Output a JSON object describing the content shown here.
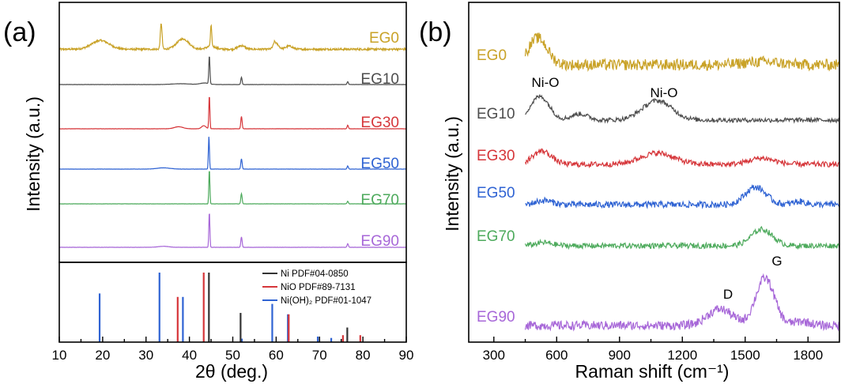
{
  "chart_data": [
    {
      "type": "line",
      "panel_label": "(a)",
      "xlabel": "2θ (deg.)",
      "ylabel": "Intensity (a.u.)",
      "xlim": [
        10,
        90
      ],
      "xticks": [
        "10",
        "20",
        "30",
        "40",
        "50",
        "60",
        "70",
        "80",
        "90"
      ],
      "colors": {
        "EG0": "#c9a227",
        "EG10": "#4d4d4d",
        "EG30": "#d6363a",
        "EG50": "#2f63d3",
        "EG70": "#4daa5c",
        "EG90": "#a767d8"
      },
      "series": [
        {
          "name": "EG0",
          "color": "#c9a227",
          "baseline": 0.9,
          "noise": 0.03,
          "broad_peaks": [
            [
              19.5,
              0.85,
              2.0
            ],
            [
              38.5,
              1.0,
              1.4
            ],
            [
              45.0,
              0.3,
              1.0
            ],
            [
              52.0,
              0.35,
              0.8
            ],
            [
              60.0,
              0.55,
              0.6
            ],
            [
              63.0,
              0.3,
              0.8
            ]
          ],
          "peaks": [
            [
              33.5,
              2.5,
              0.2
            ],
            [
              45.0,
              2.0,
              0.15
            ],
            [
              59.6,
              0.3,
              0.2
            ]
          ]
        },
        {
          "name": "EG10",
          "color": "#4d4d4d",
          "baseline": 0.0,
          "noise": 0.01,
          "broad_peaks": [
            [
              38.0,
              0.08,
              2.0
            ],
            [
              43.5,
              0.15,
              1.0
            ]
          ],
          "peaks": [
            [
              44.6,
              2.7,
              0.13
            ],
            [
              52.0,
              0.7,
              0.15
            ],
            [
              76.5,
              0.28,
              0.15
            ]
          ]
        },
        {
          "name": "EG30",
          "color": "#d6363a",
          "baseline": 0.0,
          "noise": 0.01,
          "broad_peaks": [
            [
              37.5,
              0.2,
              1.0
            ],
            [
              43.3,
              0.3,
              0.5
            ]
          ],
          "peaks": [
            [
              44.6,
              3.2,
              0.12
            ],
            [
              52.0,
              1.2,
              0.15
            ],
            [
              76.5,
              0.35,
              0.15
            ]
          ]
        },
        {
          "name": "EG50",
          "color": "#2f63d3",
          "baseline": 0.0,
          "noise": 0.01,
          "broad_peaks": [
            [
              34.0,
              0.12,
              1.5
            ]
          ],
          "peaks": [
            [
              44.5,
              3.2,
              0.12
            ],
            [
              52.0,
              1.0,
              0.15
            ],
            [
              76.5,
              0.3,
              0.15
            ]
          ]
        },
        {
          "name": "EG70",
          "color": "#4daa5c",
          "baseline": 0.0,
          "noise": 0.01,
          "broad_peaks": [],
          "peaks": [
            [
              44.6,
              3.3,
              0.12
            ],
            [
              52.0,
              1.0,
              0.15
            ],
            [
              76.5,
              0.25,
              0.15
            ]
          ]
        },
        {
          "name": "EG90",
          "color": "#a767d8",
          "baseline": 0.0,
          "noise": 0.01,
          "broad_peaks": [
            [
              34.0,
              0.1,
              1.2
            ]
          ],
          "peaks": [
            [
              44.6,
              3.4,
              0.12
            ],
            [
              52.0,
              1.0,
              0.15
            ],
            [
              76.5,
              0.35,
              0.15
            ]
          ]
        }
      ],
      "reference": {
        "legend": [
          {
            "label": "Ni PDF#04-0850",
            "color": "#333333"
          },
          {
            "label": "NiO PDF#89-7131",
            "color": "#d6363a"
          },
          {
            "label": "Ni(OH)₂ PDF#01-1047",
            "color": "#2f63d3"
          }
        ],
        "Ni": [
          [
            44.5,
            100
          ],
          [
            51.8,
            42
          ],
          [
            76.4,
            21
          ]
        ],
        "NiO": [
          [
            37.3,
            65
          ],
          [
            43.3,
            100
          ],
          [
            62.9,
            40
          ],
          [
            75.4,
            10
          ],
          [
            79.4,
            10
          ]
        ],
        "NiOH2": [
          [
            19.3,
            70
          ],
          [
            33.1,
            100
          ],
          [
            38.5,
            65
          ],
          [
            52.1,
            5
          ],
          [
            59.1,
            55
          ],
          [
            62.7,
            40
          ],
          [
            69.6,
            8
          ],
          [
            72.7,
            6
          ]
        ]
      }
    },
    {
      "type": "line",
      "panel_label": "(b)",
      "xlabel": "Raman shift (cm⁻¹)",
      "ylabel": "Intensity (a.u.)",
      "xlim": [
        180,
        1950
      ],
      "xticks": [
        "300",
        "600",
        "900",
        "1200",
        "1500",
        "1800"
      ],
      "colors": {
        "EG0": "#c9a227",
        "EG10": "#4d4d4d",
        "EG30": "#d6363a",
        "EG50": "#2f63d3",
        "EG70": "#4daa5c",
        "EG90": "#a767d8"
      },
      "annotations": [
        "Ni-O",
        "Ni-O",
        "D",
        "G"
      ],
      "series": [
        {
          "name": "EG0",
          "color": "#c9a227",
          "noise": 0.25,
          "peaks": [
            [
              510,
              2.6,
              45
            ],
            [
              1580,
              0.3,
              80
            ]
          ]
        },
        {
          "name": "EG10",
          "color": "#4d4d4d",
          "noise": 0.1,
          "peaks": [
            [
              520,
              2.3,
              45
            ],
            [
              710,
              0.6,
              40
            ],
            [
              1080,
              1.9,
              70
            ]
          ]
        },
        {
          "name": "EG30",
          "color": "#d6363a",
          "noise": 0.12,
          "peaks": [
            [
              530,
              1.3,
              45
            ],
            [
              1080,
              1.1,
              80
            ],
            [
              1580,
              0.6,
              60
            ]
          ]
        },
        {
          "name": "EG50",
          "color": "#2f63d3",
          "noise": 0.14,
          "peaks": [
            [
              540,
              0.4,
              40
            ],
            [
              1550,
              1.7,
              50
            ],
            [
              1760,
              0.3,
              30
            ]
          ]
        },
        {
          "name": "EG70",
          "color": "#4daa5c",
          "noise": 0.12,
          "peaks": [
            [
              540,
              0.3,
              40
            ],
            [
              1580,
              1.6,
              50
            ]
          ]
        },
        {
          "name": "EG90",
          "color": "#a767d8",
          "noise": 0.2,
          "peaks": [
            [
              1380,
              1.6,
              60
            ],
            [
              1595,
              4.6,
              45
            ],
            [
              1770,
              0.4,
              40
            ]
          ]
        }
      ]
    }
  ]
}
